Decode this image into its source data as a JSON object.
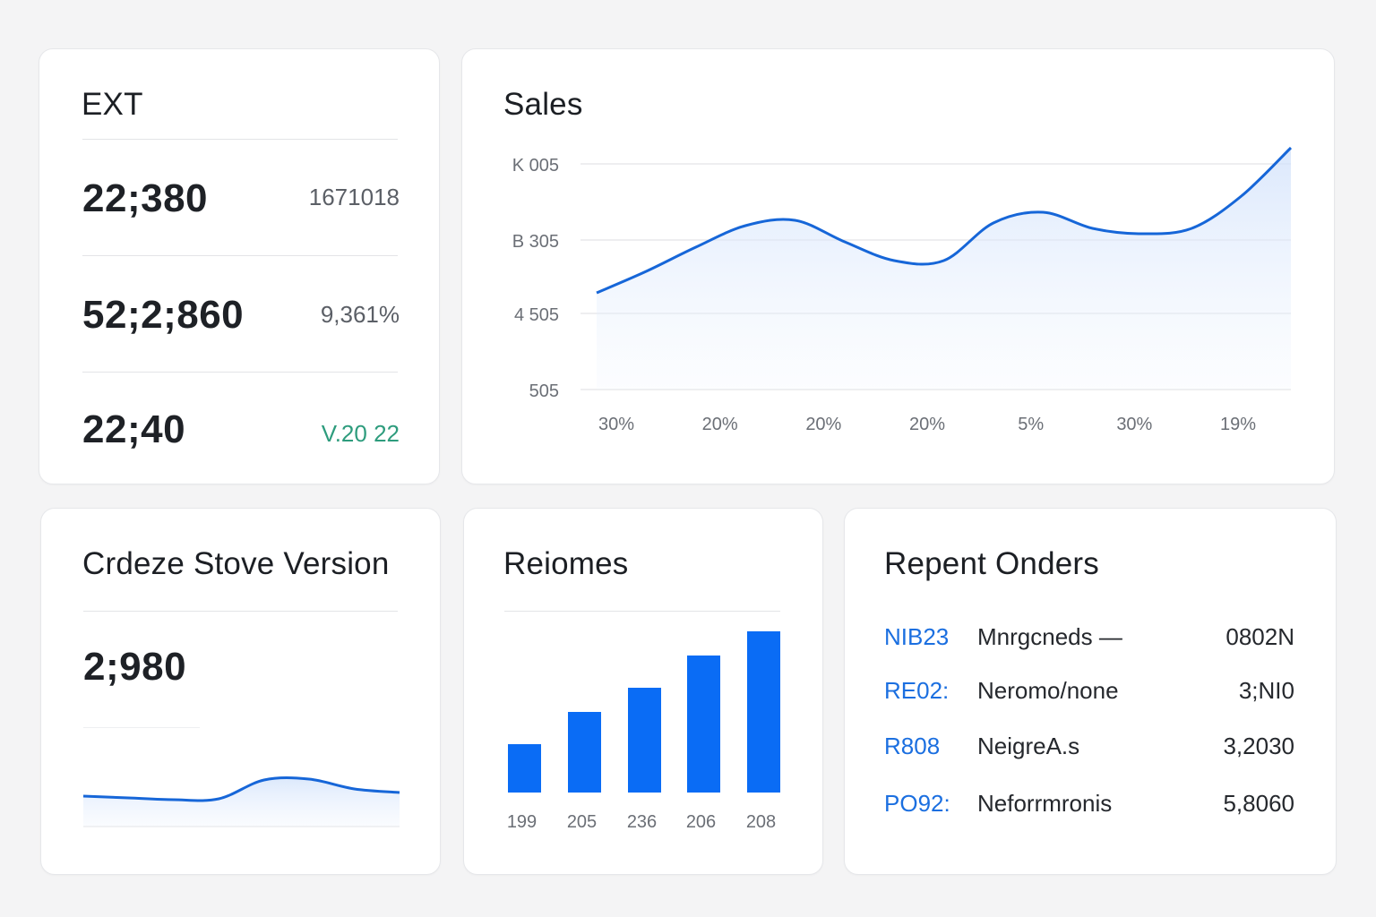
{
  "colors": {
    "accent": "#0a6cf5",
    "positive": "#2e9c7d",
    "line": "#1666d8"
  },
  "ext_card": {
    "title": "EXT",
    "rows": [
      {
        "value": "22;380",
        "delta": "1671018"
      },
      {
        "value": "52;2;860",
        "delta": "9,361%"
      },
      {
        "value": "22;40",
        "delta": "V.20 22"
      }
    ]
  },
  "sales_card": {
    "title": "Sales",
    "chart_data": {
      "type": "area",
      "title": "Sales",
      "y_tick_labels": [
        "K 005",
        "B 305",
        "4 505",
        "505"
      ],
      "x_tick_labels": [
        "30%",
        "20%",
        "20%",
        "20%",
        "5%",
        "30%",
        "19%"
      ],
      "x": [
        0,
        1,
        2,
        3,
        4,
        5,
        6,
        7,
        8,
        9,
        10,
        11,
        12,
        13,
        14
      ],
      "y": [
        3.6,
        4.4,
        5.3,
        6.1,
        6.3,
        5.5,
        4.8,
        4.8,
        6.2,
        6.6,
        6.0,
        5.8,
        6.0,
        7.2,
        9.0
      ],
      "ylim": [
        0,
        10
      ],
      "grid": true
    }
  },
  "store_card": {
    "title": "Crdeze Stove Version",
    "value": "2;980",
    "chart_data": {
      "type": "area",
      "y": [
        3.4,
        3.2,
        3.0,
        3.1,
        5.2,
        5.3,
        4.2,
        3.8
      ],
      "ylim": [
        0,
        10
      ]
    }
  },
  "bars_card": {
    "title": "Reiomes",
    "chart_data": {
      "type": "bar",
      "categories": [
        "199",
        "205",
        "236",
        "206",
        "208"
      ],
      "values": [
        30,
        50,
        65,
        85,
        100
      ],
      "ylim": [
        0,
        100
      ]
    }
  },
  "orders_card": {
    "title": "Repent Onders",
    "rows": [
      {
        "id": "NIB23",
        "name": "Mnrgcneds —",
        "amount": "0802N"
      },
      {
        "id": "RE02:",
        "name": "Neromo/none",
        "amount": "3;NI0"
      },
      {
        "id": "R808",
        "name": "NeigreA.s",
        "amount": "3,2030"
      },
      {
        "id": "PO92:",
        "name": "Neforrmronis",
        "amount": "5,8060"
      }
    ]
  }
}
